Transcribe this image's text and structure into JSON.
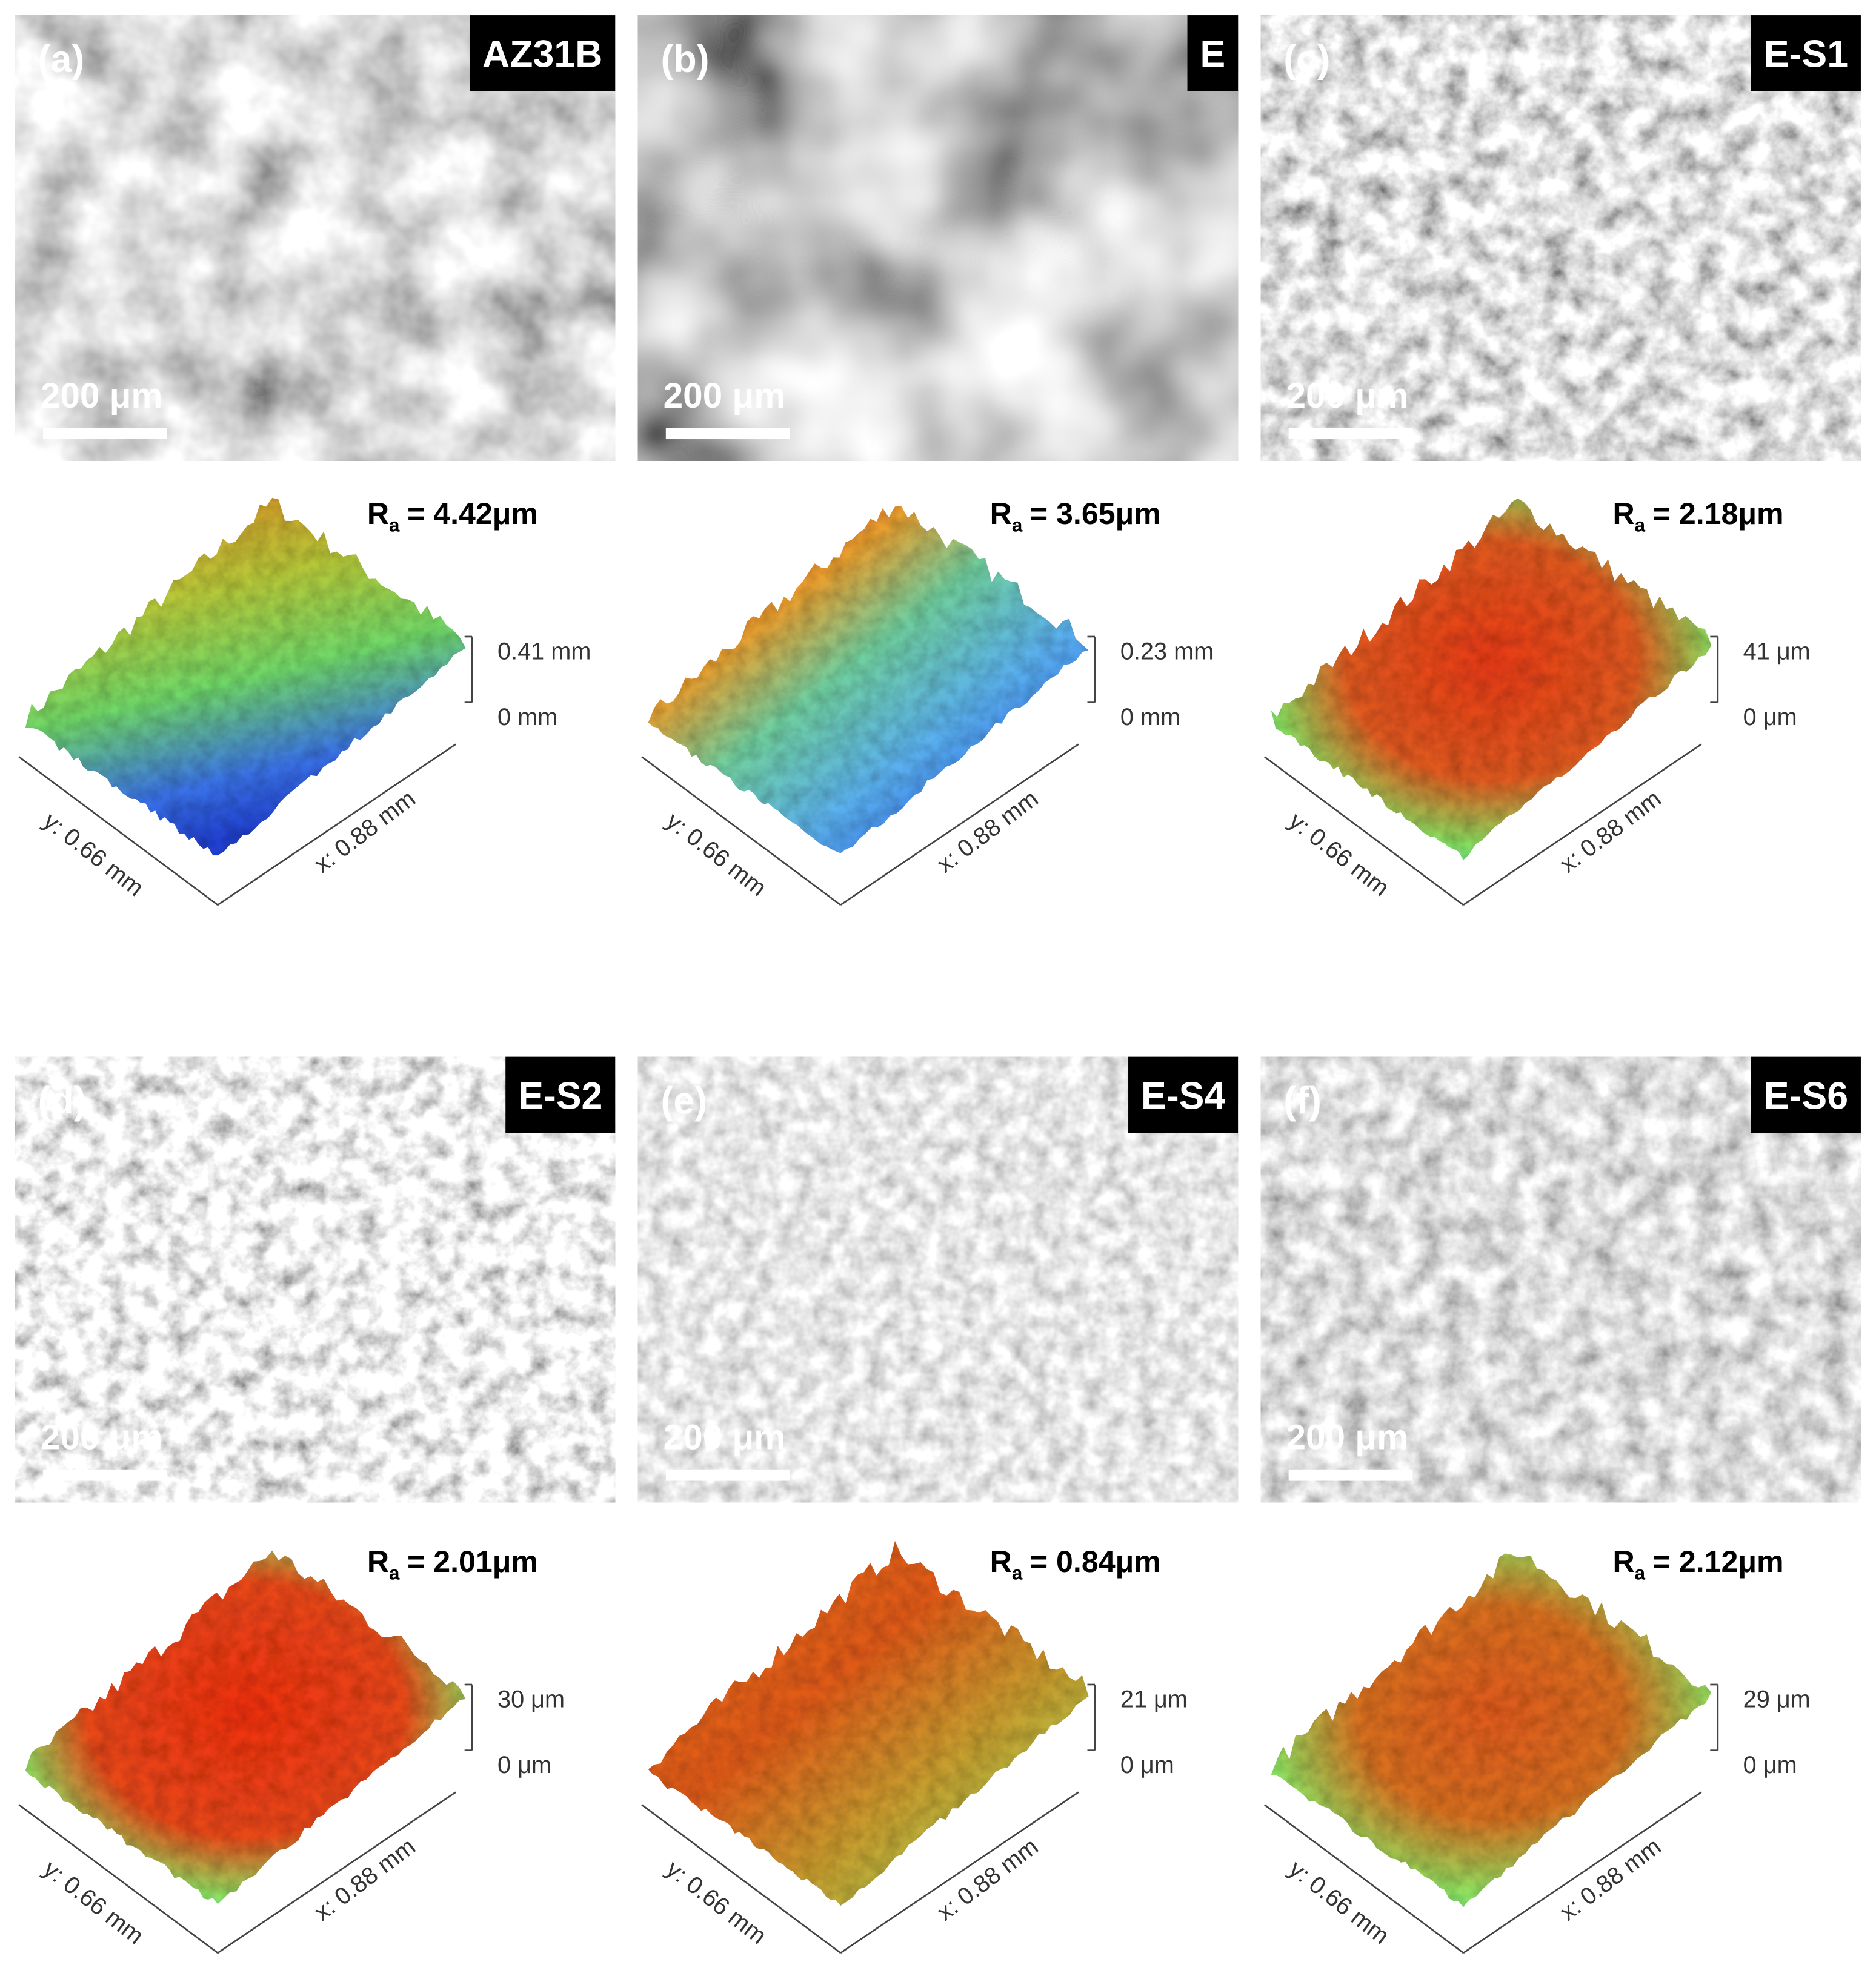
{
  "panels": [
    {
      "label": "(a)",
      "sample": "AZ31B",
      "scale_bar": "200 μm",
      "ra_symbol": "R",
      "ra_subscript": "a",
      "ra_value": "= 4.42μm",
      "z_top": "0.41 mm",
      "z_bottom": "0 mm",
      "y_axis": "y: 0.66 mm",
      "x_axis": "x: 0.88 mm"
    },
    {
      "label": "(b)",
      "sample": "E",
      "scale_bar": "200 μm",
      "ra_symbol": "R",
      "ra_subscript": "a",
      "ra_value": "= 3.65μm",
      "z_top": "0.23 mm",
      "z_bottom": "0 mm",
      "y_axis": "y: 0.66 mm",
      "x_axis": "x: 0.88 mm"
    },
    {
      "label": "(c)",
      "sample": "E-S1",
      "scale_bar": "200 μm",
      "ra_symbol": "R",
      "ra_subscript": "a",
      "ra_value": "= 2.18μm",
      "z_top": "41 μm",
      "z_bottom": "0 μm",
      "y_axis": "y: 0.66 mm",
      "x_axis": "x: 0.88 mm"
    },
    {
      "label": "(d)",
      "sample": "E-S2",
      "scale_bar": "200 μm",
      "ra_symbol": "R",
      "ra_subscript": "a",
      "ra_value": "= 2.01μm",
      "z_top": "30 μm",
      "z_bottom": "0 μm",
      "y_axis": "y: 0.66 mm",
      "x_axis": "x: 0.88 mm"
    },
    {
      "label": "(e)",
      "sample": "E-S4",
      "scale_bar": "200 μm",
      "ra_symbol": "R",
      "ra_subscript": "a",
      "ra_value": "= 0.84μm",
      "z_top": "21 μm",
      "z_bottom": "0 μm",
      "y_axis": "y: 0.66 mm",
      "x_axis": "x: 0.88 mm"
    },
    {
      "label": "(f)",
      "sample": "E-S6",
      "scale_bar": "200 μm",
      "ra_symbol": "R",
      "ra_subscript": "a",
      "ra_value": "= 2.12μm",
      "z_top": "29 μm",
      "z_bottom": "0 μm",
      "y_axis": "y: 0.66 mm",
      "x_axis": "x: 0.88 mm"
    }
  ]
}
